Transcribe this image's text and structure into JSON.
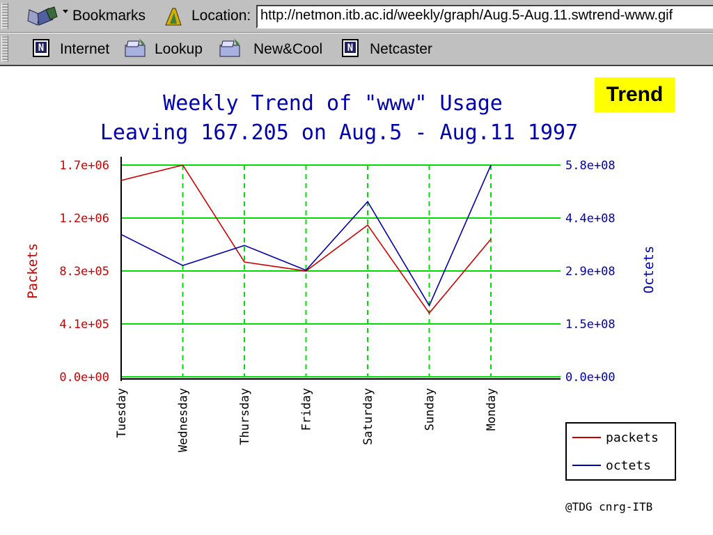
{
  "browser": {
    "bookmarks_label": "Bookmarks",
    "location_label": "Location:",
    "url": "http://netmon.itb.ac.id/weekly/graph/Aug.5-Aug.11.swtrend-www.gif",
    "personal_toolbar": [
      {
        "label": "Internet",
        "icon": "netscape-n-icon"
      },
      {
        "label": "Lookup",
        "icon": "folder-icon"
      },
      {
        "label": "New&Cool",
        "icon": "folder-icon"
      },
      {
        "label": "Netcaster",
        "icon": "netscape-n-icon"
      }
    ]
  },
  "badge": {
    "text": "Trend"
  },
  "chart_data": {
    "type": "line",
    "title": "Weekly Trend of \"www\" Usage",
    "subtitle": "Leaving 167.205 on Aug.5 - Aug.11 1997",
    "categories": [
      "Tuesday",
      "Wednesday",
      "Thursday",
      "Friday",
      "Saturday",
      "Sunday",
      "Monday"
    ],
    "y_left": {
      "label": "Packets",
      "ticks": [
        "0.0e+00",
        "4.1e+05",
        "8.3e+05",
        "1.2e+06",
        "1.7e+06"
      ],
      "range": [
        0,
        1660000
      ]
    },
    "y_right": {
      "label": "Octets",
      "ticks": [
        "0.0e+00",
        "1.5e+08",
        "2.9e+08",
        "4.4e+08",
        "5.8e+08"
      ],
      "range": [
        0,
        580000000
      ]
    },
    "series": [
      {
        "name": "packets",
        "axis": "left",
        "color": "#cc0000",
        "values": [
          1540000,
          1660000,
          900000,
          830000,
          1190000,
          500000,
          1080000
        ]
      },
      {
        "name": "octets",
        "axis": "right",
        "color": "#0000aa",
        "values": [
          390000000,
          305000000,
          360000000,
          292000000,
          480000000,
          195000000,
          580000000
        ]
      }
    ],
    "grid": true,
    "legend_position": "bottom-right",
    "footer": "@TDG cnrg-ITB"
  }
}
